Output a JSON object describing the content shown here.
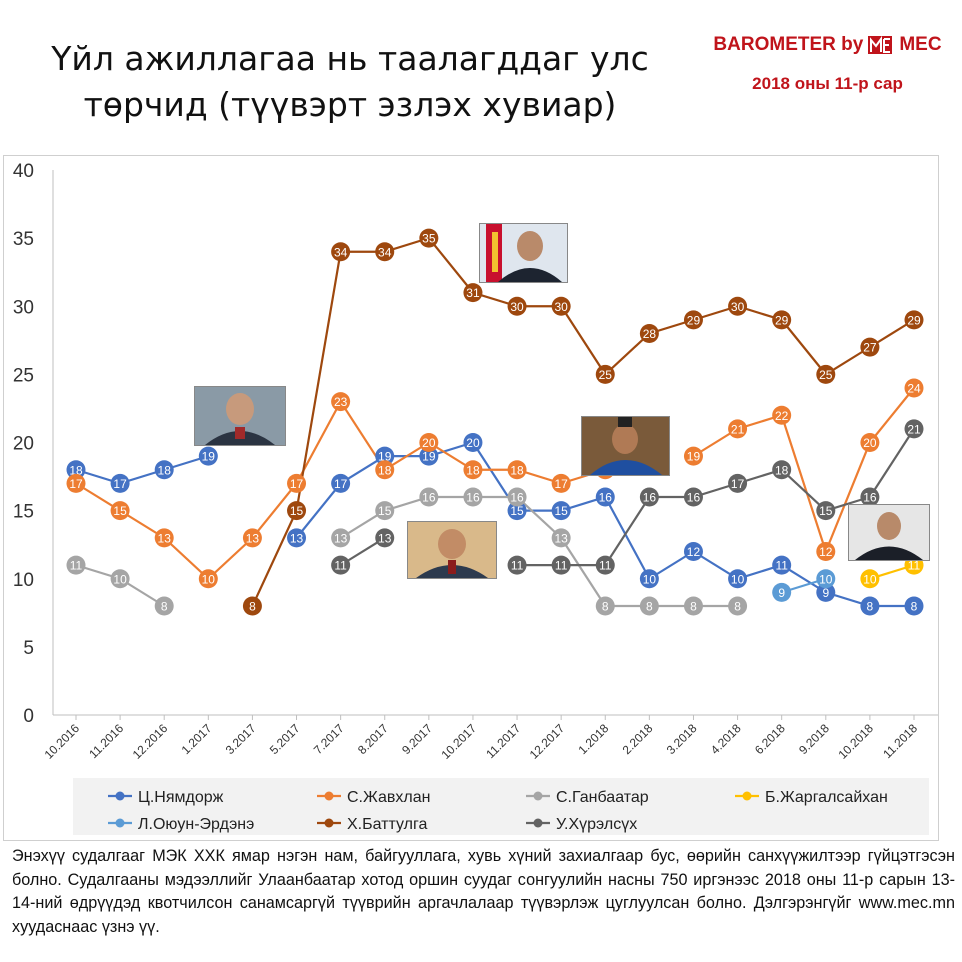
{
  "title_line1": "Үйл ажиллагаа нь таалагддаг улс",
  "title_line2": "төрчид (түүвэрт эзлэх хувиар)",
  "brand": {
    "name": "BAROMETER by",
    "logo_text": "MEC",
    "date": "2018 оны 11-р сар"
  },
  "footnote": "Энэхүү судалгааг МЭК ХХК ямар нэгэн нам, байгууллага, хувь хүний захиалгаар бус, өөрийн санхүүжилтээр гүйцэтгэсэн болно. Судалгааны мэдээллийг Улаанбаатар хотод оршин суудаг сонгуулийн насны 750 иргэнээс 2018 оны 11-р сарын 13-14-ний өдрүүдэд квотчилсон санамсаргүй түүврийн аргачлалаар түүвэрлэж цуглуулсан болно. Дэлгэрэнгүйг www.mec.mn хуудаснаас үзнэ үү.",
  "chart_data": {
    "type": "line",
    "title": "Үйл ажиллагаа нь таалагддаг улс төрчид (түүвэрт эзлэх хувиар)",
    "categories": [
      "10.2016",
      "11.2016",
      "12.2016",
      "1.2017",
      "3.2017",
      "5.2017",
      "7.2017",
      "8.2017",
      "9.2017",
      "10.2017",
      "11.2017",
      "12.2017",
      "1.2018",
      "2.2018",
      "3.2018",
      "4.2018",
      "6.2018",
      "9.2018",
      "10.2018",
      "11.2018"
    ],
    "ylim": [
      0,
      40
    ],
    "yticks": [
      0,
      5,
      10,
      15,
      20,
      25,
      30,
      35,
      40
    ],
    "grid": false,
    "legend_position": "bottom",
    "series": [
      {
        "name": "Ц.Нямдорж",
        "color": "#4472c4",
        "values": [
          18,
          17,
          18,
          19,
          null,
          13,
          17,
          19,
          19,
          20,
          15,
          15,
          16,
          10,
          12,
          10,
          11,
          9,
          8,
          8
        ]
      },
      {
        "name": "С.Жавхлан",
        "color": "#ed7d31",
        "values": [
          17,
          15,
          13,
          10,
          13,
          17,
          23,
          18,
          20,
          18,
          18,
          17,
          18,
          null,
          19,
          21,
          22,
          12,
          20,
          24
        ]
      },
      {
        "name": "С.Ганбаатар",
        "color": "#a5a5a5",
        "values": [
          11,
          10,
          8,
          null,
          null,
          null,
          13,
          15,
          16,
          16,
          16,
          13,
          8,
          8,
          8,
          8,
          null,
          null,
          null,
          null
        ]
      },
      {
        "name": "Б.Жаргалсайхан",
        "color": "#ffc000",
        "values": [
          null,
          null,
          null,
          null,
          null,
          null,
          null,
          null,
          null,
          null,
          null,
          null,
          null,
          null,
          null,
          null,
          null,
          null,
          10,
          11
        ]
      },
      {
        "name": "Л.Оюун-Эрдэнэ",
        "color": "#5b9bd5",
        "values": [
          null,
          null,
          null,
          null,
          null,
          null,
          null,
          null,
          null,
          null,
          null,
          null,
          null,
          null,
          null,
          null,
          9,
          10,
          null,
          null
        ]
      },
      {
        "name": "Х.Баттулга",
        "color": "#9e480e",
        "values": [
          null,
          null,
          null,
          null,
          8,
          15,
          34,
          34,
          35,
          31,
          30,
          30,
          25,
          28,
          29,
          30,
          29,
          25,
          27,
          29
        ]
      },
      {
        "name": "У.Хүрэлсүх",
        "color": "#636363",
        "values": [
          null,
          null,
          null,
          null,
          null,
          null,
          11,
          13,
          null,
          null,
          11,
          11,
          11,
          16,
          16,
          17,
          18,
          15,
          16,
          21
        ]
      }
    ]
  }
}
